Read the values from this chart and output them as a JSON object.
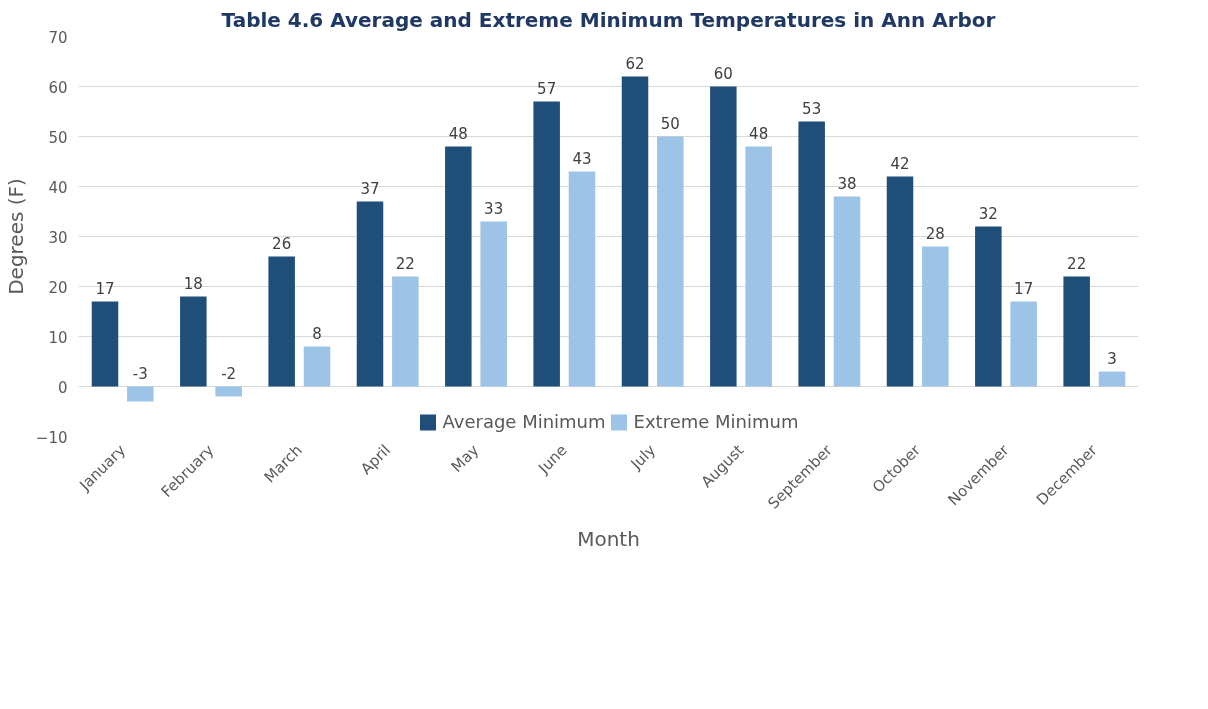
{
  "chart_data": {
    "type": "bar",
    "title": "Table 4.6 Average and Extreme Minimum Temperatures in Ann Arbor",
    "xlabel": "Month",
    "ylabel": "Degrees (F)",
    "categories": [
      "January",
      "February",
      "March",
      "April",
      "May",
      "June",
      "July",
      "August",
      "September",
      "October",
      "November",
      "December"
    ],
    "series": [
      {
        "name": "Average Minimum",
        "color": "#1f4e79",
        "values": [
          17,
          18,
          26,
          37,
          48,
          57,
          62,
          60,
          53,
          42,
          32,
          22
        ]
      },
      {
        "name": "Extreme Minimum",
        "color": "#9dc3e6",
        "values": [
          -3,
          -2,
          8,
          22,
          33,
          43,
          50,
          48,
          38,
          28,
          17,
          3
        ]
      }
    ],
    "ylim": [
      -10,
      70
    ],
    "yticks": [
      -10,
      0,
      10,
      20,
      30,
      40,
      50,
      60,
      70
    ],
    "grid": "y",
    "legend": "bottom",
    "data_labels": true
  }
}
